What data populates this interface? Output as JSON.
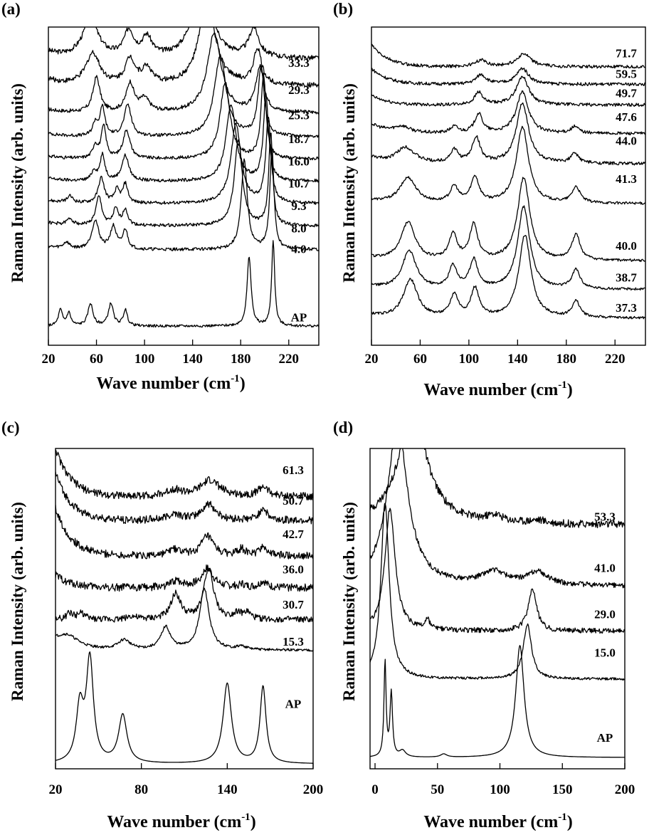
{
  "chart_data": [
    {
      "panel": "(a)",
      "type": "line",
      "ylabel": "Raman Intensity (arb. units)",
      "xlabel": "Wave number (cm",
      "xlabel_sup": "-1",
      "xlabel_end": ")",
      "xlim": [
        20,
        245
      ],
      "xticks": [
        20,
        60,
        100,
        140,
        180,
        220
      ],
      "series": [
        {
          "name": "33.3",
          "baseline": 0.9,
          "noise": 0.008,
          "peaks": [
            [
              55,
              0.12,
              8
            ],
            [
              87,
              0.08,
              5
            ],
            [
              102,
              0.06,
              5
            ],
            [
              148,
              0.3,
              8
            ],
            [
              191,
              0.09,
              5
            ]
          ],
          "tail": 0.02
        },
        {
          "name": "29.3",
          "baseline": 0.815,
          "noise": 0.008,
          "peaks": [
            [
              57,
              0.1,
              7
            ],
            [
              88,
              0.08,
              5
            ],
            [
              102,
              0.05,
              5
            ],
            [
              152,
              0.27,
              8
            ],
            [
              194,
              0.11,
              4
            ]
          ],
          "tail": 0.02
        },
        {
          "name": "25.3",
          "baseline": 0.73,
          "noise": 0.006,
          "peaks": [
            [
              60,
              0.11,
              3.5
            ],
            [
              88,
              0.09,
              4
            ],
            [
              100,
              0.04,
              5
            ],
            [
              158,
              0.25,
              7
            ],
            [
              196,
              0.14,
              4
            ]
          ],
          "tail": 0.01
        },
        {
          "name": "18.7",
          "baseline": 0.655,
          "noise": 0.005,
          "peaks": [
            [
              59,
              0.04,
              2.5
            ],
            [
              65,
              0.09,
              2.5
            ],
            [
              86,
              0.1,
              3.5
            ],
            [
              163,
              0.25,
              6
            ],
            [
              197,
              0.22,
              3
            ]
          ],
          "tail": 0.01
        },
        {
          "name": "16.0",
          "baseline": 0.585,
          "noise": 0.005,
          "peaks": [
            [
              59,
              0.04,
              2.5
            ],
            [
              66,
              0.1,
              2.5
            ],
            [
              85,
              0.09,
              3.5
            ],
            [
              167,
              0.24,
              5
            ],
            [
              199,
              0.26,
              2.5
            ]
          ],
          "tail": 0.01
        },
        {
          "name": "10.7",
          "baseline": 0.515,
          "noise": 0.005,
          "peaks": [
            [
              58,
              0.03,
              2.5
            ],
            [
              65,
              0.08,
              2.5
            ],
            [
              84,
              0.08,
              3.5
            ],
            [
              172,
              0.24,
              5
            ],
            [
              201,
              0.27,
              2.5
            ]
          ],
          "tail": 0.01
        },
        {
          "name": "9.3",
          "baseline": 0.445,
          "noise": 0.005,
          "peaks": [
            [
              38,
              0.02,
              3
            ],
            [
              64,
              0.08,
              3
            ],
            [
              77,
              0.04,
              2.5
            ],
            [
              84,
              0.06,
              2.5
            ],
            [
              176,
              0.25,
              5
            ],
            [
              203,
              0.27,
              2.5
            ]
          ],
          "tail": 0.01
        },
        {
          "name": "8.0",
          "baseline": 0.375,
          "noise": 0.005,
          "peaks": [
            [
              38,
              0.02,
              3
            ],
            [
              62,
              0.09,
              3
            ],
            [
              76,
              0.05,
              2.5
            ],
            [
              84,
              0.05,
              2.5
            ],
            [
              178,
              0.27,
              4
            ],
            [
              205,
              0.29,
              2
            ]
          ],
          "tail": 0.01
        },
        {
          "name": "4.0",
          "baseline": 0.3,
          "noise": 0.005,
          "peaks": [
            [
              35,
              0.02,
              3
            ],
            [
              59,
              0.09,
              3.5
            ],
            [
              74,
              0.07,
              3
            ],
            [
              84,
              0.06,
              2.5
            ],
            [
              183,
              0.28,
              3
            ],
            [
              206,
              0.32,
              2
            ]
          ],
          "tail": 0.01
        },
        {
          "name": "AP",
          "baseline": 0.06,
          "noise": 0.004,
          "peaks": [
            [
              30,
              0.05,
              2
            ],
            [
              37,
              0.04,
              2
            ],
            [
              55,
              0.07,
              2.5
            ],
            [
              72,
              0.07,
              2.5
            ],
            [
              84,
              0.05,
              2
            ],
            [
              187,
              0.22,
              2
            ],
            [
              207,
              0.27,
              1.5
            ]
          ],
          "tail": 0.0
        }
      ],
      "label_positions": [
        0.875,
        0.79,
        0.71,
        0.635,
        0.565,
        0.495,
        0.425,
        0.355,
        0.29,
        0.075
      ]
    },
    {
      "panel": "(b)",
      "type": "line",
      "ylabel": "Raman Intensity (arb. units)",
      "xlabel": "Wave number (cm",
      "xlabel_sup": "-1",
      "xlabel_end": ")",
      "xlim": [
        20,
        245
      ],
      "xticks": [
        20,
        60,
        100,
        140,
        180,
        220
      ],
      "series": [
        {
          "name": "71.7",
          "baseline": 0.875,
          "noise": 0.005,
          "peaks": [
            [
              110,
              0.02,
              6
            ],
            [
              145,
              0.04,
              7
            ]
          ],
          "tail": 0.07
        },
        {
          "name": "59.5",
          "baseline": 0.82,
          "noise": 0.005,
          "peaks": [
            [
              110,
              0.03,
              5
            ],
            [
              144,
              0.05,
              6
            ]
          ],
          "tail": 0.05
        },
        {
          "name": "49.7",
          "baseline": 0.755,
          "noise": 0.005,
          "peaks": [
            [
              108,
              0.04,
              4
            ],
            [
              144,
              0.09,
              6
            ]
          ],
          "tail": 0.03
        },
        {
          "name": "47.6",
          "baseline": 0.665,
          "noise": 0.005,
          "peaks": [
            [
              45,
              0.02,
              8
            ],
            [
              88,
              0.02,
              4
            ],
            [
              108,
              0.06,
              4
            ],
            [
              144,
              0.13,
              6
            ],
            [
              187,
              0.02,
              4
            ]
          ],
          "tail": 0.03
        },
        {
          "name": "44.0",
          "baseline": 0.57,
          "noise": 0.005,
          "peaks": [
            [
              48,
              0.05,
              9
            ],
            [
              88,
              0.04,
              4
            ],
            [
              106,
              0.08,
              4
            ],
            [
              144,
              0.19,
              6
            ],
            [
              187,
              0.03,
              4
            ]
          ],
          "tail": 0.02
        },
        {
          "name": "41.3",
          "baseline": 0.445,
          "noise": 0.004,
          "peaks": [
            [
              50,
              0.08,
              8
            ],
            [
              88,
              0.05,
              4
            ],
            [
              105,
              0.08,
              4
            ],
            [
              144,
              0.24,
              6
            ],
            [
              188,
              0.05,
              4
            ]
          ],
          "tail": 0.01
        },
        {
          "name": "40.0",
          "baseline": 0.265,
          "noise": 0.004,
          "peaks": [
            [
              50,
              0.12,
              7
            ],
            [
              87,
              0.08,
              4
            ],
            [
              104,
              0.11,
              4
            ],
            [
              145,
              0.26,
              6
            ],
            [
              188,
              0.08,
              4
            ]
          ],
          "tail": 0.01
        },
        {
          "name": "38.7",
          "baseline": 0.175,
          "noise": 0.004,
          "peaks": [
            [
              51,
              0.12,
              7
            ],
            [
              87,
              0.07,
              4
            ],
            [
              104,
              0.09,
              4
            ],
            [
              145,
              0.26,
              6
            ],
            [
              188,
              0.06,
              4
            ]
          ],
          "tail": 0.01
        },
        {
          "name": "37.3",
          "baseline": 0.085,
          "noise": 0.004,
          "peaks": [
            [
              52,
              0.12,
              7
            ],
            [
              88,
              0.07,
              4
            ],
            [
              105,
              0.09,
              4
            ],
            [
              146,
              0.26,
              6
            ],
            [
              188,
              0.05,
              4
            ]
          ],
          "tail": 0.01
        }
      ],
      "label_positions": [
        0.905,
        0.84,
        0.78,
        0.705,
        0.63,
        0.51,
        0.3,
        0.2,
        0.105
      ]
    },
    {
      "panel": "(c)",
      "type": "line",
      "ylabel": "Raman Intensity (arb. units)",
      "xlabel": "Wave number (cm",
      "xlabel_sup": "-1",
      "xlabel_end": ")",
      "xlim": [
        20,
        200
      ],
      "xticks": [
        20,
        80,
        140,
        200
      ],
      "series": [
        {
          "name": "61.3",
          "baseline": 0.85,
          "noise": 0.012,
          "peaks": [
            [
              103,
              0.02,
              6
            ],
            [
              128,
              0.05,
              8
            ],
            [
              165,
              0.03,
              4
            ]
          ],
          "tail": 0.15
        },
        {
          "name": "50.7",
          "baseline": 0.775,
          "noise": 0.012,
          "peaks": [
            [
              103,
              0.02,
              6
            ],
            [
              127,
              0.05,
              6
            ],
            [
              165,
              0.04,
              3
            ]
          ],
          "tail": 0.15
        },
        {
          "name": "42.7",
          "baseline": 0.665,
          "noise": 0.012,
          "peaks": [
            [
              103,
              0.02,
              5
            ],
            [
              126,
              0.06,
              5
            ],
            [
              150,
              0.02,
              3
            ],
            [
              165,
              0.03,
              3
            ]
          ],
          "tail": 0.15
        },
        {
          "name": "36.0",
          "baseline": 0.565,
          "noise": 0.012,
          "peaks": [
            [
              105,
              0.02,
              5
            ],
            [
              126,
              0.06,
              5
            ],
            [
              150,
              0.01,
              3
            ],
            [
              165,
              0.02,
              3
            ]
          ],
          "tail": 0.04
        },
        {
          "name": "30.7",
          "baseline": 0.465,
          "noise": 0.01,
          "peaks": [
            [
              30,
              0.02,
              3
            ],
            [
              38,
              0.02,
              3
            ],
            [
              73,
              0.01,
              4
            ],
            [
              104,
              0.08,
              4
            ],
            [
              127,
              0.16,
              4
            ],
            [
              147,
              0.02,
              3
            ],
            [
              154,
              0.02,
              3
            ]
          ],
          "tail": 0.0
        },
        {
          "name": "15.3",
          "baseline": 0.37,
          "noise": 0.004,
          "peaks": [
            [
              28,
              0.04,
              10
            ],
            [
              68,
              0.03,
              5
            ],
            [
              97,
              0.07,
              4
            ],
            [
              124,
              0.19,
              4
            ],
            [
              150,
              0.01,
              4
            ]
          ],
          "tail": 0.02
        },
        {
          "name": "AP",
          "baseline": 0.015,
          "noise": 0.0,
          "peaks": [
            [
              37,
              0.17,
              3
            ],
            [
              44,
              0.32,
              3
            ],
            [
              67,
              0.15,
              3.5
            ],
            [
              140,
              0.25,
              3.5
            ],
            [
              165,
              0.24,
              2.5
            ]
          ],
          "tail": 0.0
        }
      ],
      "label_positions": [
        0.92,
        0.825,
        0.72,
        0.61,
        0.5,
        0.385,
        0.19
      ]
    },
    {
      "panel": "(d)",
      "type": "line",
      "ylabel": "Raman Intensity (arb. units)",
      "xlabel": "Wave number (cm",
      "xlabel_sup": "-1",
      "xlabel_end": ")",
      "xlim": [
        -4,
        200
      ],
      "xticks": [
        0,
        50,
        100,
        150,
        200
      ],
      "series": [
        {
          "name": "53.3",
          "baseline": 0.76,
          "noise": 0.012,
          "peaks": [
            [
              30,
              0.35,
              14
            ],
            [
              96,
              0.02,
              8
            ],
            [
              130,
              0.01,
              8
            ]
          ],
          "tail": 0.0
        },
        {
          "name": "41.0",
          "baseline": 0.57,
          "noise": 0.008,
          "peaks": [
            [
              18,
              0.5,
              10
            ],
            [
              95,
              0.04,
              12
            ],
            [
              130,
              0.04,
              10
            ]
          ],
          "tail": 0.0
        },
        {
          "name": "29.0",
          "baseline": 0.43,
          "noise": 0.008,
          "peaks": [
            [
              12,
              0.38,
              5
            ],
            [
              42,
              0.03,
              2
            ],
            [
              126,
              0.13,
              4
            ]
          ],
          "tail": 0.0
        },
        {
          "name": "15.0",
          "baseline": 0.28,
          "noise": 0.004,
          "peaks": [
            [
              8,
              0.55,
              4
            ],
            [
              122,
              0.17,
              4
            ]
          ],
          "tail": 0.0
        },
        {
          "name": "AP",
          "baseline": 0.035,
          "noise": 0.0,
          "peaks": [
            [
              8,
              0.3,
              1
            ],
            [
              13,
              0.2,
              1.2
            ],
            [
              22,
              0.02,
              3
            ],
            [
              55,
              0.01,
              3
            ],
            [
              116,
              0.35,
              4
            ]
          ],
          "tail": 0.0
        }
      ],
      "label_positions": [
        0.775,
        0.615,
        0.47,
        0.35,
        0.085
      ]
    }
  ]
}
